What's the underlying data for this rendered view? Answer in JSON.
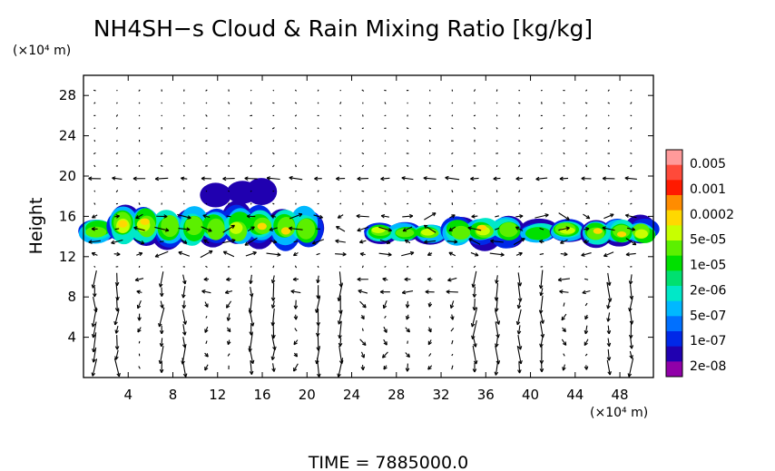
{
  "chart_data": {
    "type": "heatmap",
    "title": "NH4SH−s Cloud & Rain Mixing Ratio [kg/kg]",
    "ylabel": "Height",
    "y_unit": "(×10⁴ m)",
    "x_unit": "(×10⁴ m)",
    "xlim": [
      0,
      51
    ],
    "ylim": [
      0,
      30
    ],
    "x_ticks": [
      "4",
      "8",
      "12",
      "16",
      "20",
      "24",
      "28",
      "32",
      "36",
      "40",
      "44",
      "48"
    ],
    "y_ticks": [
      "4",
      "8",
      "12",
      "16",
      "20",
      "24",
      "28"
    ],
    "x_tick_values": [
      4,
      8,
      12,
      16,
      20,
      24,
      28,
      32,
      36,
      40,
      44,
      48
    ],
    "y_tick_values": [
      4,
      8,
      12,
      16,
      20,
      24,
      28
    ],
    "colorbar": {
      "labels": [
        "0.005",
        "0.001",
        "0.0002",
        "5e-05",
        "1e-05",
        "2e-06",
        "5e-07",
        "1e-07",
        "2e-08"
      ],
      "colors": [
        "#ff9a9a",
        "#ff4a3a",
        "#ff1a00",
        "#ff8c00",
        "#ffd800",
        "#c8ff00",
        "#5cf000",
        "#00e000",
        "#00e070",
        "#00e8c8",
        "#00b8ff",
        "#0070ff",
        "#0028e8",
        "#2000b0",
        "#9000a8"
      ]
    },
    "cloud_regions": [
      {
        "x_range": [
          0,
          2.5
        ],
        "y_range": [
          13.3,
          15.8
        ],
        "peak": "0.0002"
      },
      {
        "x_range": [
          2.5,
          21
        ],
        "y_range": [
          13.0,
          17.0
        ],
        "peak": "0.0002"
      },
      {
        "x_range": [
          11,
          17
        ],
        "y_range": [
          17.0,
          19.5
        ],
        "peak": "2e-08"
      },
      {
        "x_range": [
          25.5,
          32
        ],
        "y_range": [
          13.4,
          15.4
        ],
        "peak": "5e-05"
      },
      {
        "x_range": [
          32.5,
          39
        ],
        "y_range": [
          13.0,
          16.0
        ],
        "peak": "0.0002"
      },
      {
        "x_range": [
          39.5,
          42
        ],
        "y_range": [
          13.5,
          15.5
        ],
        "peak": "1e-05"
      },
      {
        "x_range": [
          42,
          44.5
        ],
        "y_range": [
          13.3,
          15.6
        ],
        "peak": "5e-05"
      },
      {
        "x_range": [
          45,
          51
        ],
        "y_range": [
          13.0,
          15.8
        ],
        "peak": "0.0002"
      }
    ],
    "vectors": "wind arrows on a regular grid (x every ~2, y every ~1 ×10⁴ m), strongest near x=8,16,22,36,40,48 columns and along y=19 and y=9",
    "grid": false,
    "legend_position": "right"
  },
  "footer": {
    "time_label": "TIME  =  7885000.0"
  }
}
